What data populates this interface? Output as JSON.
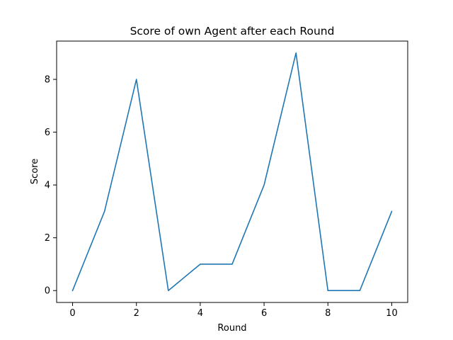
{
  "chart_data": {
    "type": "line",
    "title": "Score of own Agent after each Round",
    "xlabel": "Round",
    "ylabel": "Score",
    "xlim": [
      -0.5,
      10.5
    ],
    "ylim": [
      -0.45,
      9.45
    ],
    "xticks": [
      0,
      2,
      4,
      6,
      8,
      10
    ],
    "yticks": [
      0,
      2,
      4,
      6,
      8
    ],
    "grid": false,
    "legend": "none",
    "series": [
      {
        "color": "#1f77b4",
        "x": [
          0,
          1,
          2,
          3,
          4,
          5,
          6,
          7,
          8,
          9,
          10
        ],
        "y": [
          0,
          3,
          8,
          0,
          1,
          1,
          4,
          9,
          0,
          0,
          3
        ]
      }
    ]
  }
}
